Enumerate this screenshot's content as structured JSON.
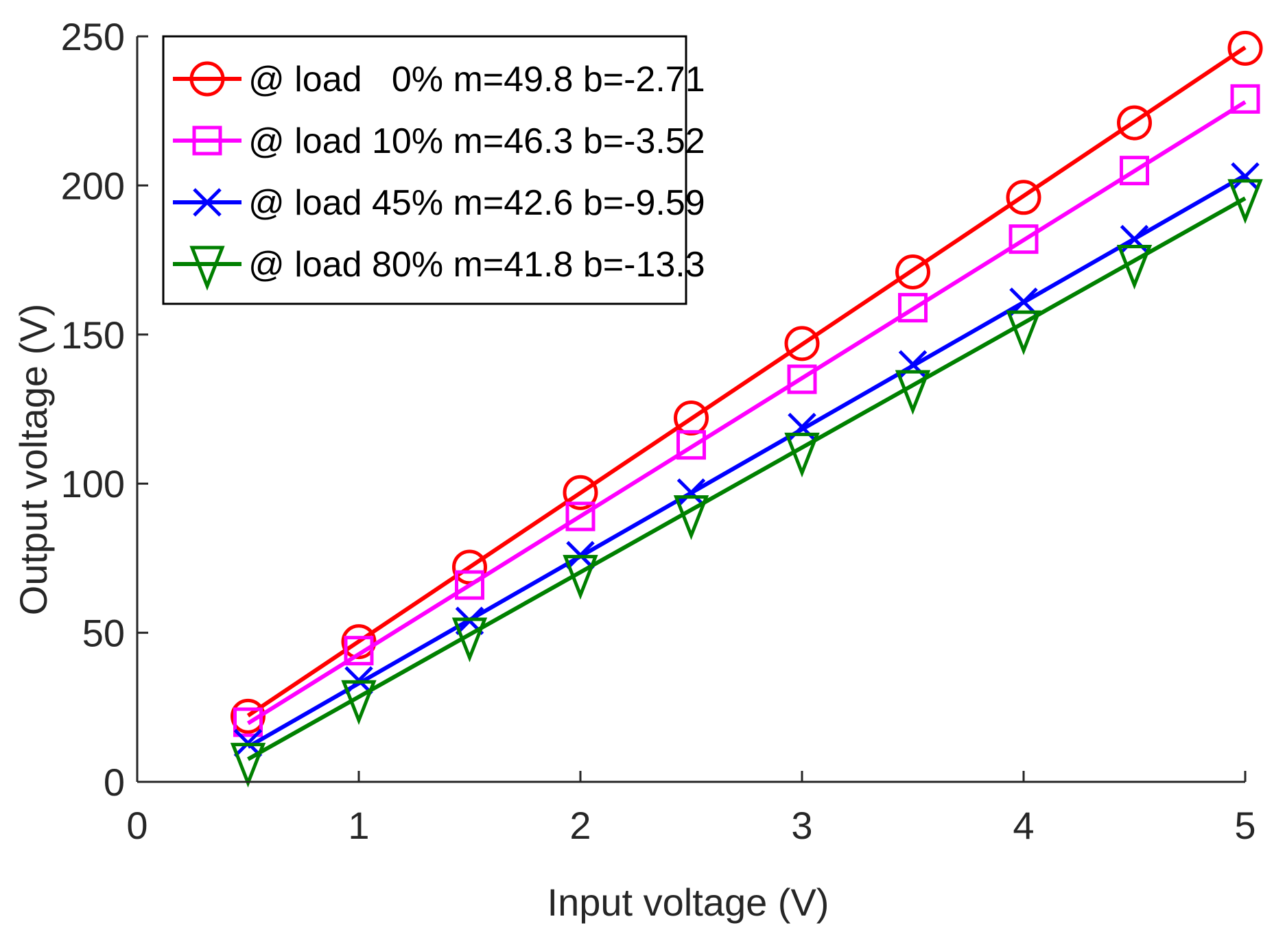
{
  "chart_data": {
    "type": "line",
    "title": "",
    "xlabel": "Input voltage (V)",
    "ylabel": "Output voltage (V)",
    "xlim": [
      0,
      5
    ],
    "ylim": [
      0,
      250
    ],
    "x_ticks": [
      "0",
      "1",
      "2",
      "3",
      "4",
      "5"
    ],
    "y_ticks": [
      "0",
      "50",
      "100",
      "150",
      "200",
      "250"
    ],
    "grid": false,
    "legend_position": "top-left",
    "x": [
      0.5,
      1,
      1.5,
      2,
      2.5,
      3,
      3.5,
      4,
      4.5,
      5
    ],
    "series": [
      {
        "name": "@ load   0% m=49.8 b=-2.71",
        "color": "#ff0000",
        "marker": "circle",
        "m": 49.8,
        "b": -2.71,
        "values": [
          22,
          47,
          72,
          97,
          122,
          147,
          171,
          196,
          221,
          246
        ]
      },
      {
        "name": "@ load 10% m=46.3 b=-3.52",
        "color": "#ff00ff",
        "marker": "square",
        "m": 46.3,
        "b": -3.52,
        "values": [
          20,
          44,
          66,
          89,
          113,
          135,
          159,
          182,
          205,
          229
        ]
      },
      {
        "name": "@ load 45% m=42.6 b=-9.59",
        "color": "#0000ff",
        "marker": "x",
        "m": 42.6,
        "b": -9.59,
        "values": [
          13,
          34,
          54,
          76,
          97,
          119,
          140,
          161,
          182,
          203
        ]
      },
      {
        "name": "@ load 80% m=41.8 b=-13.3",
        "color": "#008000",
        "marker": "triangle-down",
        "m": 41.8,
        "b": -13.3,
        "values": [
          7,
          28,
          49,
          70,
          90,
          111,
          132,
          152,
          174,
          196
        ]
      }
    ]
  }
}
